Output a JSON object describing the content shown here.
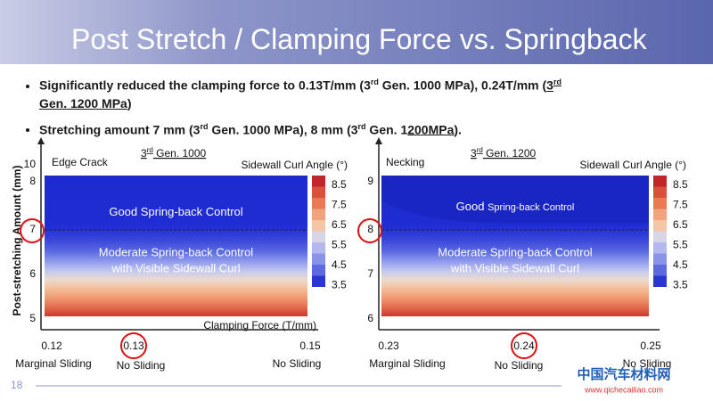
{
  "title": "Post Stretch / Clamping Force vs. Springback",
  "bullets": [
    [
      "Significantly reduced the clamping force to  0.13T/mm (3",
      "rd",
      " Gen. 1000 MPa),  0.24T/mm (",
      "3",
      "rd",
      "Gen. 1200 MPa",
      ")"
    ],
    [
      "Stretching amount 7 mm (3",
      "rd",
      " Gen. 1000 MPa), 8 mm (3",
      "rd",
      " Gen. 1",
      "200MPa",
      ")."
    ]
  ],
  "y_axis_label": "Post-stretching Amount (mm)",
  "panels": [
    {
      "heading": [
        "3",
        "rd",
        " Gen. 1000"
      ],
      "corner_label": "Edge Crack",
      "legend_title": "Sidewall Curl Angle (°)",
      "legend_ticks": [
        "8.5",
        "7.5",
        "6.5",
        "5.5",
        "4.5",
        "3.5"
      ],
      "region_top": [
        "Good Spring-back Control"
      ],
      "region_mid": [
        "Moderate Spring-back Control",
        "with Visible Sidewall Curl"
      ],
      "x_axis_label": "Clamping Force (T/mm)",
      "x_ticks": [
        "0.12",
        "0.13",
        "0.15"
      ],
      "y_ticks": [
        "10",
        "8",
        "7",
        "6",
        "5"
      ],
      "x_notes": [
        "Marginal Sliding",
        "No Sliding",
        "No Sliding"
      ]
    },
    {
      "heading": [
        "3",
        "rd",
        " Gen. 1200"
      ],
      "corner_label": "Necking",
      "legend_title": "Sidewall Curl Angle (°)",
      "legend_ticks": [
        "8.5",
        "7.5",
        "6.5",
        "5.5",
        "4.5",
        "3.5"
      ],
      "region_top": [
        "Good ",
        "Spring-back Control"
      ],
      "region_mid": [
        "Moderate Spring-back Control",
        "with Visible Sidewall Curl"
      ],
      "x_ticks": [
        "0.23",
        "0.24",
        "0.25"
      ],
      "y_ticks": [
        "9",
        "8",
        "7",
        "6"
      ],
      "x_notes": [
        "Marginal Sliding",
        "No Sliding",
        "No Sliding"
      ]
    }
  ],
  "footer": {
    "page": "18",
    "watermark": "中国汽车材料网",
    "watermark_url": "www.qichecailiao.com"
  }
}
